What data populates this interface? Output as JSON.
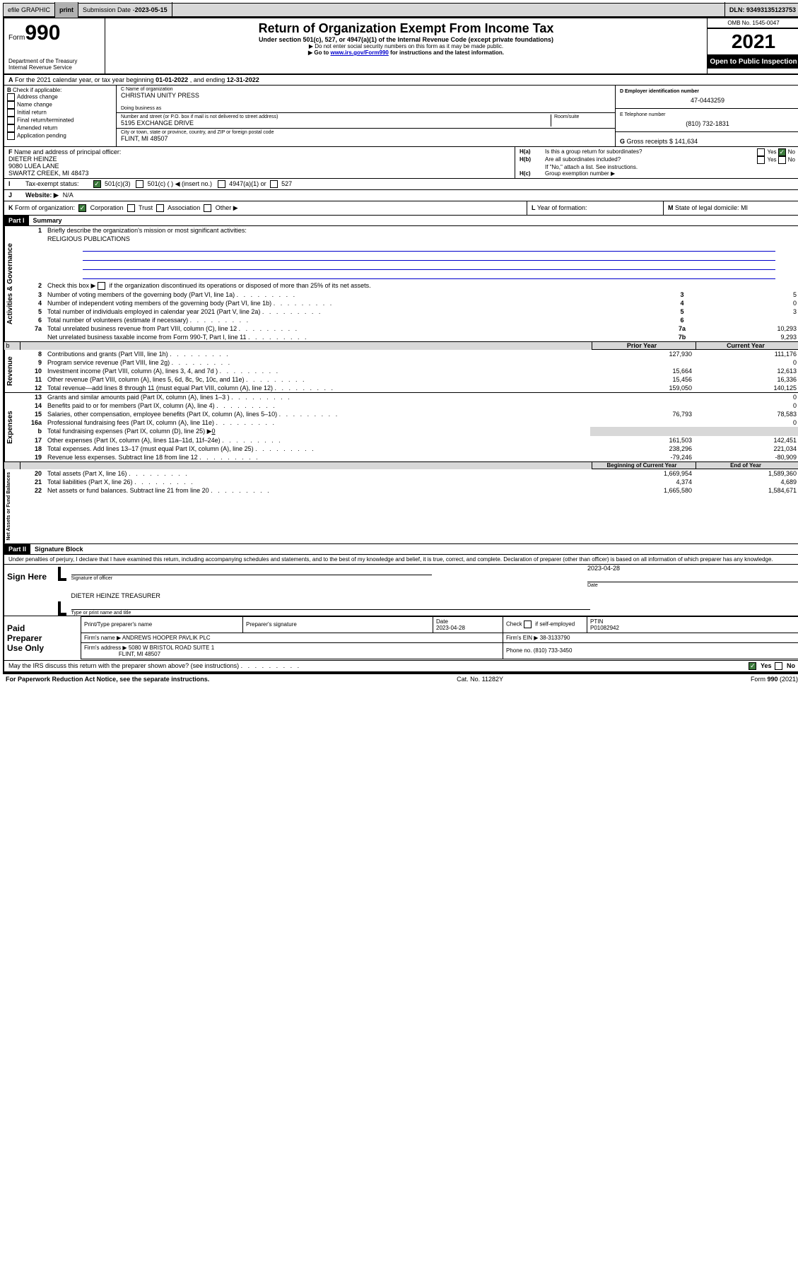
{
  "topbar": {
    "efile": "efile GRAPHIC",
    "print": "print",
    "submission_label": "Submission Date - ",
    "submission_date": "2023-05-15",
    "dln_label": "DLN: ",
    "dln": "93493135123753"
  },
  "header": {
    "form_word": "Form",
    "form_num": "990",
    "dept": "Department of the Treasury",
    "irs": "Internal Revenue Service",
    "title": "Return of Organization Exempt From Income Tax",
    "sub1": "Under section 501(c), 527, or 4947(a)(1) of the Internal Revenue Code (except private foundations)",
    "sub2": "Do not enter social security numbers on this form as it may be made public.",
    "sub3_pre": "Go to ",
    "sub3_link": "www.irs.gov/Form990",
    "sub3_post": " for instructions and the latest information.",
    "omb": "OMB No. 1545-0047",
    "year": "2021",
    "inspect": "Open to Public Inspection"
  },
  "rowA": {
    "label": "A",
    "text": " For the 2021 calendar year, or tax year beginning ",
    "begin": "01-01-2022",
    "mid": " , and ending ",
    "end": "12-31-2022"
  },
  "B": {
    "label": "B",
    "check": " Check if applicable:",
    "opts": [
      "Address change",
      "Name change",
      "Initial return",
      "Final return/terminated",
      "Amended return",
      "Application pending"
    ]
  },
  "C": {
    "name_label": "C Name of organization",
    "name": "CHRISTIAN UNITY PRESS",
    "dba_label": "Doing business as",
    "dba": "",
    "addr_label": "Number and street (or P.O. box if mail is not delivered to street address)",
    "room_label": "Room/suite",
    "addr": "5195 EXCHANGE DRIVE",
    "city_label": "City or town, state or province, country, and ZIP or foreign postal code",
    "city": "FLINT, MI  48507"
  },
  "D": {
    "label": "D Employer identification number",
    "val": "47-0443259"
  },
  "E": {
    "label": "E Telephone number",
    "val": "(810) 732-1831"
  },
  "G": {
    "label": "G",
    "text": " Gross receipts $ ",
    "val": "141,634"
  },
  "F": {
    "label": "F",
    "text": " Name and address of principal officer:",
    "l1": "DIETER HEINZE",
    "l2": "9080 LUEA LANE",
    "l3": "SWARTZ CREEK, MI  48473"
  },
  "H": {
    "a_label": "H(a)",
    "a_text": "Is this a group return for subordinates?",
    "b_label": "H(b)",
    "b_text": "Are all subordinates included?",
    "b_note": "If \"No,\" attach a list. See instructions.",
    "c_label": "H(c)",
    "c_text": "Group exemption number ▶",
    "yes": "Yes",
    "no": "No"
  },
  "I": {
    "label": "I",
    "text": "Tax-exempt status:",
    "o1": "501(c)(3)",
    "o2": "501(c) (   ) ◀ (insert no.)",
    "o3": "4947(a)(1) or",
    "o4": "527"
  },
  "J": {
    "label": "J",
    "text": "Website: ▶",
    "val": "N/A"
  },
  "K": {
    "label": "K",
    "text": " Form of organization:",
    "o1": "Corporation",
    "o2": "Trust",
    "o3": "Association",
    "o4": "Other ▶"
  },
  "L": {
    "label": "L",
    "text": " Year of formation:",
    "val": ""
  },
  "M": {
    "label": "M",
    "text": " State of legal domicile: ",
    "val": "MI"
  },
  "part1": {
    "hdr": "Part I",
    "title": "Summary"
  },
  "summary": {
    "q1_label": "1",
    "q1": "Briefly describe the organization's mission or most significant activities:",
    "q1_val": "RELIGIOUS PUBLICATIONS",
    "q2_label": "2",
    "q2": "Check this box ▶",
    "q2_post": " if the organization discontinued its operations or disposed of more than 25% of its net assets.",
    "rows_top": [
      {
        "n": "3",
        "d": "Number of voting members of the governing body (Part VI, line 1a)",
        "box": "3",
        "v": "5"
      },
      {
        "n": "4",
        "d": "Number of independent voting members of the governing body (Part VI, line 1b)",
        "box": "4",
        "v": "0"
      },
      {
        "n": "5",
        "d": "Total number of individuals employed in calendar year 2021 (Part V, line 2a)",
        "box": "5",
        "v": "3"
      },
      {
        "n": "6",
        "d": "Total number of volunteers (estimate if necessary)",
        "box": "6",
        "v": ""
      },
      {
        "n": "7a",
        "d": "Total unrelated business revenue from Part VIII, column (C), line 12",
        "box": "7a",
        "v": "10,293"
      },
      {
        "n": "",
        "d": "Net unrelated business taxable income from Form 990-T, Part I, line 11",
        "box": "7b",
        "v": "9,293"
      }
    ],
    "col_prior": "Prior Year",
    "col_curr": "Current Year",
    "rev": [
      {
        "n": "8",
        "d": "Contributions and grants (Part VIII, line 1h)",
        "p": "127,930",
        "c": "111,176"
      },
      {
        "n": "9",
        "d": "Program service revenue (Part VIII, line 2g)",
        "p": "",
        "c": "0"
      },
      {
        "n": "10",
        "d": "Investment income (Part VIII, column (A), lines 3, 4, and 7d )",
        "p": "15,664",
        "c": "12,613"
      },
      {
        "n": "11",
        "d": "Other revenue (Part VIII, column (A), lines 5, 6d, 8c, 9c, 10c, and 11e)",
        "p": "15,456",
        "c": "16,336"
      },
      {
        "n": "12",
        "d": "Total revenue—add lines 8 through 11 (must equal Part VIII, column (A), line 12)",
        "p": "159,050",
        "c": "140,125"
      }
    ],
    "exp": [
      {
        "n": "13",
        "d": "Grants and similar amounts paid (Part IX, column (A), lines 1–3 )",
        "p": "",
        "c": "0"
      },
      {
        "n": "14",
        "d": "Benefits paid to or for members (Part IX, column (A), line 4)",
        "p": "",
        "c": "0"
      },
      {
        "n": "15",
        "d": "Salaries, other compensation, employee benefits (Part IX, column (A), lines 5–10)",
        "p": "76,793",
        "c": "78,583"
      },
      {
        "n": "16a",
        "d": "Professional fundraising fees (Part IX, column (A), line 11e)",
        "p": "",
        "c": "0"
      },
      {
        "n": "b",
        "d": "Total fundraising expenses (Part IX, column (D), line 25) ▶",
        "suffix": "0",
        "shade": true
      },
      {
        "n": "17",
        "d": "Other expenses (Part IX, column (A), lines 11a–11d, 11f–24e)",
        "p": "161,503",
        "c": "142,451"
      },
      {
        "n": "18",
        "d": "Total expenses. Add lines 13–17 (must equal Part IX, column (A), line 25)",
        "p": "238,296",
        "c": "221,034"
      },
      {
        "n": "19",
        "d": "Revenue less expenses. Subtract line 18 from line 12",
        "p": "-79,246",
        "c": "-80,909"
      }
    ],
    "col_beg": "Beginning of Current Year",
    "col_end": "End of Year",
    "net": [
      {
        "n": "20",
        "d": "Total assets (Part X, line 16)",
        "p": "1,669,954",
        "c": "1,589,360"
      },
      {
        "n": "21",
        "d": "Total liabilities (Part X, line 26)",
        "p": "4,374",
        "c": "4,689"
      },
      {
        "n": "22",
        "d": "Net assets or fund balances. Subtract line 21 from line 20",
        "p": "1,665,580",
        "c": "1,584,671"
      }
    ],
    "side_act": "Activities & Governance",
    "side_rev": "Revenue",
    "side_exp": "Expenses",
    "side_net": "Net Assets or Fund Balances"
  },
  "part2": {
    "hdr": "Part II",
    "title": "Signature Block"
  },
  "sig": {
    "decl": "Under penalties of perjury, I declare that I have examined this return, including accompanying schedules and statements, and to the best of my knowledge and belief, it is true, correct, and complete. Declaration of preparer (other than officer) is based on all information of which preparer has any knowledge.",
    "sign_here": "Sign Here",
    "officer_sig": "Signature of officer",
    "date_lbl": "Date",
    "date": "2023-04-28",
    "name": "DIETER HEINZE  TREASURER",
    "name_lbl": "Type or print name and title"
  },
  "paid": {
    "title1": "Paid",
    "title2": "Preparer",
    "title3": "Use Only",
    "h1": "Print/Type preparer's name",
    "h2": "Preparer's signature",
    "h3": "Date",
    "h3v": "2023-04-28",
    "h4": "Check",
    "h4b": "if self-employed",
    "h5": "PTIN",
    "h5v": "P01082942",
    "firm_name_lbl": "Firm's name   ▶",
    "firm_name": "ANDREWS HOOPER PAVLIK PLC",
    "firm_ein_lbl": "Firm's EIN ▶",
    "firm_ein": "38-3133790",
    "firm_addr_lbl": "Firm's address ▶",
    "firm_addr1": "5080 W BRISTOL ROAD SUITE 1",
    "firm_addr2": "FLINT, MI  48507",
    "phone_lbl": "Phone no. ",
    "phone": "(810) 733-3450"
  },
  "discuss": {
    "q": "May the IRS discuss this return with the preparer shown above? (see instructions)",
    "yes": "Yes",
    "no": "No"
  },
  "footer": {
    "l": "For Paperwork Reduction Act Notice, see the separate instructions.",
    "m": "Cat. No. 11282Y",
    "r": "Form 990 (2021)"
  }
}
